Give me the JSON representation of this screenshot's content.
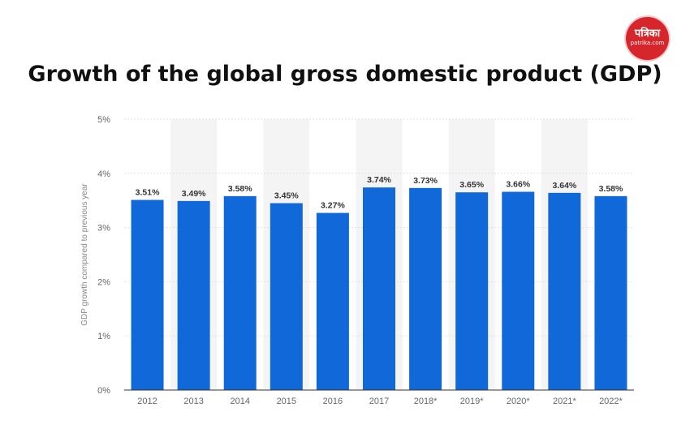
{
  "title": "Growth of the global gross domestic product (GDP)",
  "logo": {
    "main": "पत्रिका",
    "sub": "patrika.com",
    "color": "#d6252b"
  },
  "chart_data": {
    "type": "bar",
    "title": "Growth of the global gross domestic product (GDP)",
    "categories": [
      "2012",
      "2013",
      "2014",
      "2015",
      "2016",
      "2017",
      "2018*",
      "2019*",
      "2020*",
      "2021*",
      "2022*"
    ],
    "values": [
      3.51,
      3.49,
      3.58,
      3.45,
      3.27,
      3.74,
      3.73,
      3.65,
      3.66,
      3.64,
      3.58
    ],
    "value_labels": [
      "3.51%",
      "3.49%",
      "3.58%",
      "3.45%",
      "3.27%",
      "3.74%",
      "3.73%",
      "3.65%",
      "3.66%",
      "3.64%",
      "3.58%"
    ],
    "xlabel": "",
    "ylabel": "GDP growth compared to previous year",
    "ylim": [
      0,
      5
    ],
    "yticks": [
      "0%",
      "1%",
      "2%",
      "3%",
      "4%",
      "5%"
    ],
    "grid": true,
    "bar_color": "#1168d9",
    "band_color": "#f4f4f4"
  }
}
